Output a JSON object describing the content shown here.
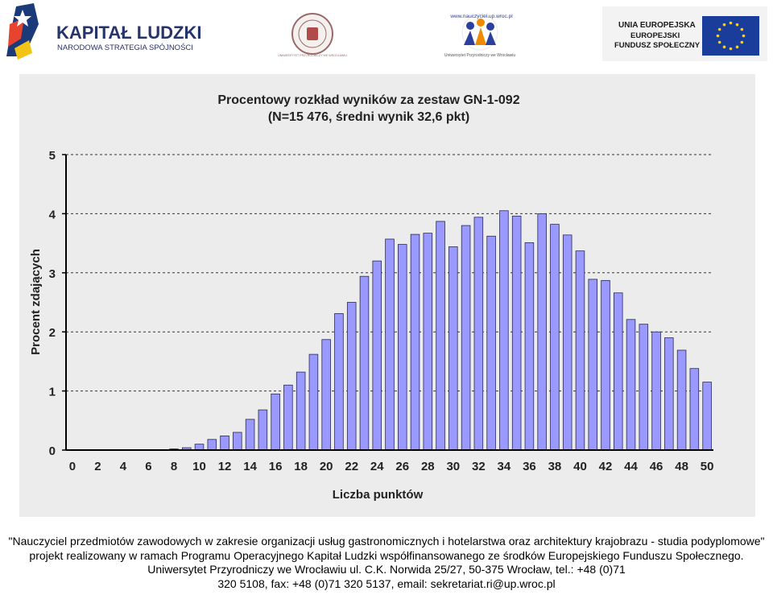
{
  "header": {
    "kl_logo": {
      "name": "KAPITAŁ LUDZKI",
      "subtitle": "NARODOWA STRATEGIA SPÓJNOŚCI"
    },
    "up_seal": {
      "text": "UNIWERSYTET PRZYRODNICZY WE WROCŁAWIU"
    },
    "nauczyciel_logo": {
      "url_text": "www.nauczyciel.up.wroc.pl",
      "caption": "Uniwersytet Przyrodniczy we Wrocławiu"
    },
    "eu_logo": {
      "line1": "UNIA EUROPEJSKA",
      "line2": "EUROPEJSKI",
      "line3": "FUNDUSZ SPOŁECZNY"
    }
  },
  "chart_data": {
    "type": "bar",
    "title": "Procentowy rozkład wyników za zestaw GN-1-092",
    "subtitle": "(N=15 476, średni wynik 32,6 pkt)",
    "xlabel": "Liczba punktów",
    "ylabel": "Procent zdających",
    "ylim": [
      0,
      5
    ],
    "yticks": [
      "0",
      "1",
      "2",
      "3",
      "4",
      "5"
    ],
    "xtick_labels": [
      "0",
      "2",
      "4",
      "6",
      "8",
      "10",
      "12",
      "14",
      "16",
      "18",
      "20",
      "22",
      "24",
      "26",
      "28",
      "30",
      "32",
      "34",
      "36",
      "38",
      "40",
      "42",
      "44",
      "46",
      "48",
      "50"
    ],
    "grid": "horizontal dashed",
    "bar_color": "#9999ff",
    "x": [
      0,
      1,
      2,
      3,
      4,
      5,
      6,
      7,
      8,
      9,
      10,
      11,
      12,
      13,
      14,
      15,
      16,
      17,
      18,
      19,
      20,
      21,
      22,
      23,
      24,
      25,
      26,
      27,
      28,
      29,
      30,
      31,
      32,
      33,
      34,
      35,
      36,
      37,
      38,
      39,
      40,
      41,
      42,
      43,
      44,
      45,
      46,
      47,
      48,
      49,
      50
    ],
    "values": [
      0,
      0,
      0,
      0,
      0,
      0,
      0,
      0,
      0.02,
      0.04,
      0.1,
      0.18,
      0.24,
      0.3,
      0.52,
      0.68,
      0.95,
      1.1,
      1.32,
      1.62,
      1.87,
      2.31,
      2.5,
      2.94,
      3.2,
      3.57,
      3.48,
      3.65,
      3.67,
      3.87,
      3.44,
      3.8,
      3.94,
      3.62,
      4.05,
      3.96,
      3.51,
      4.0,
      3.82,
      3.64,
      3.37,
      2.89,
      2.87,
      2.66,
      2.21,
      2.13,
      2.0,
      1.9,
      1.69,
      1.38,
      1.15
    ]
  },
  "footer": {
    "line1": "\"Nauczyciel przedmiotów zawodowych w zakresie organizacji usług gastronomicznych i hotelarstwa oraz architektury krajobrazu - studia podyplomowe\"",
    "line2": "projekt realizowany w ramach Programu Operacyjnego Kapitał Ludzki współfinansowanego ze środków Europejskiego Funduszu Społecznego.",
    "line3": "Uniwersytet Przyrodniczy we Wrocławiu ul. C.K. Norwida 25/27, 50-375 Wrocław, tel.: +48 (0)71 320 5108, fax: +48 (0)71 320 5137, email: sekretariat.ri@up.wroc.pl"
  }
}
